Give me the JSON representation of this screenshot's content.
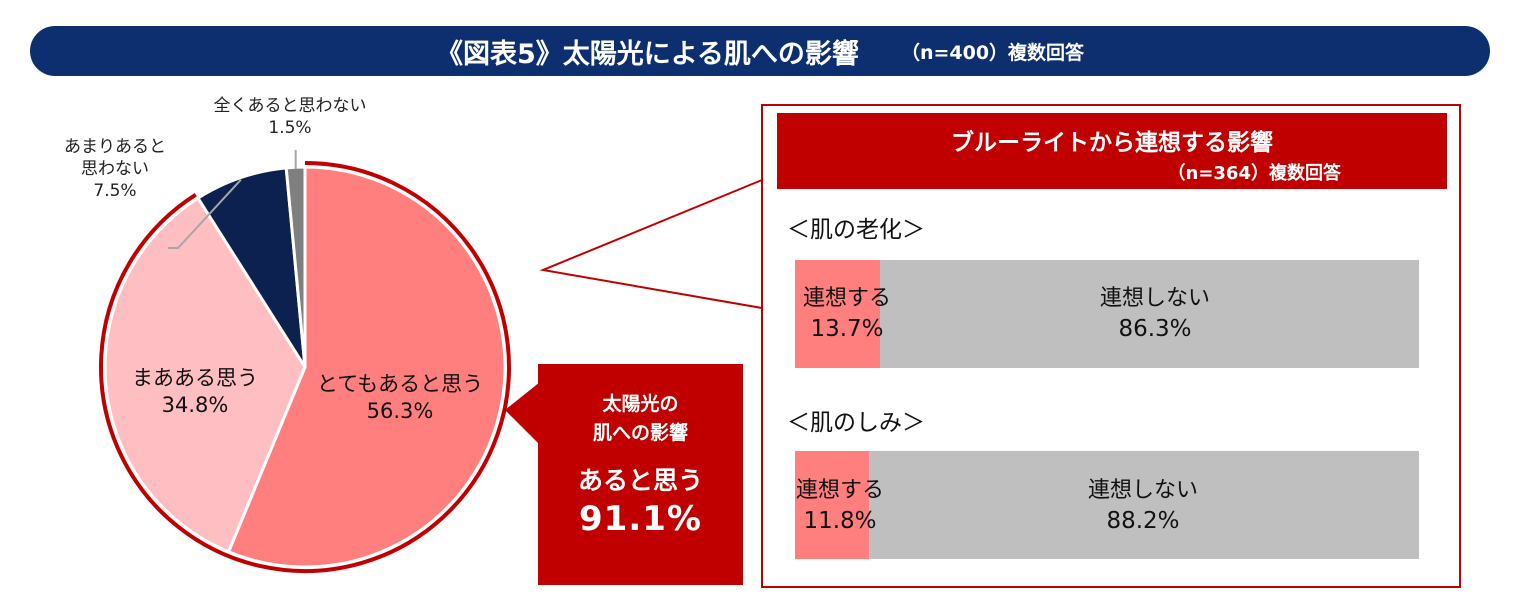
{
  "banner": {
    "title": "《図表5》太陽光による肌への影響",
    "note": "（n=400）複数回答"
  },
  "chart_data": [
    {
      "type": "pie",
      "title": "《図表5》太陽光による肌への影響",
      "subtitle": "（n=400）複数回答",
      "series": [
        {
          "label": "とてもあると思う",
          "value": 56.3,
          "display": "56.3%",
          "color": "#ff7f7f"
        },
        {
          "label": "まあある思う",
          "value": 34.8,
          "display": "34.8%",
          "color": "#ffbfc2"
        },
        {
          "label": "あまりあると思わない",
          "value": 7.5,
          "display": "7.5%",
          "color": "#0d2150"
        },
        {
          "label": "全くあると思わない",
          "value": 1.5,
          "display": "1.5%",
          "color": "#7f7f7f"
        }
      ],
      "highlight_color": "#c00000"
    },
    {
      "type": "bar",
      "orientation": "horizontal",
      "stacked": true,
      "title": "ブルーライトから連想する影響",
      "subtitle": "（n=364）複数回答",
      "categories": [
        "＜肌の老化＞",
        "＜肌のしみ＞"
      ],
      "series": [
        {
          "name": "連想する",
          "values": [
            13.7,
            11.8
          ],
          "display": [
            "13.7%",
            "11.8%"
          ],
          "color": "#ff7f7f"
        },
        {
          "name": "連想しない",
          "values": [
            86.3,
            88.2
          ],
          "display": [
            "86.3%",
            "88.2%"
          ],
          "color": "#bfbfbf"
        }
      ]
    }
  ],
  "pie_labels": {
    "totemo_name": "とてもあると思う",
    "maa_name": "まあある思う",
    "amari_line1": "あまりあると",
    "amari_line2": "思わない",
    "mattaku_name": "全くあると思わない"
  },
  "verdict": {
    "line1": "太陽光の",
    "line2": "肌への影響",
    "line3": "あると思う",
    "value": "91.1%"
  },
  "callout": {
    "title": "ブルーライトから連想する影響",
    "note": "（n=364）複数回答",
    "sections": [
      {
        "title": "＜肌の老化＞",
        "yes_label": "連想する",
        "yes_pct": "13.7%",
        "no_label": "連想しない",
        "no_pct": "86.3%"
      },
      {
        "title": "＜肌のしみ＞",
        "yes_label": "連想する",
        "yes_pct": "11.8%",
        "no_label": "連想しない",
        "no_pct": "88.2%"
      }
    ]
  }
}
